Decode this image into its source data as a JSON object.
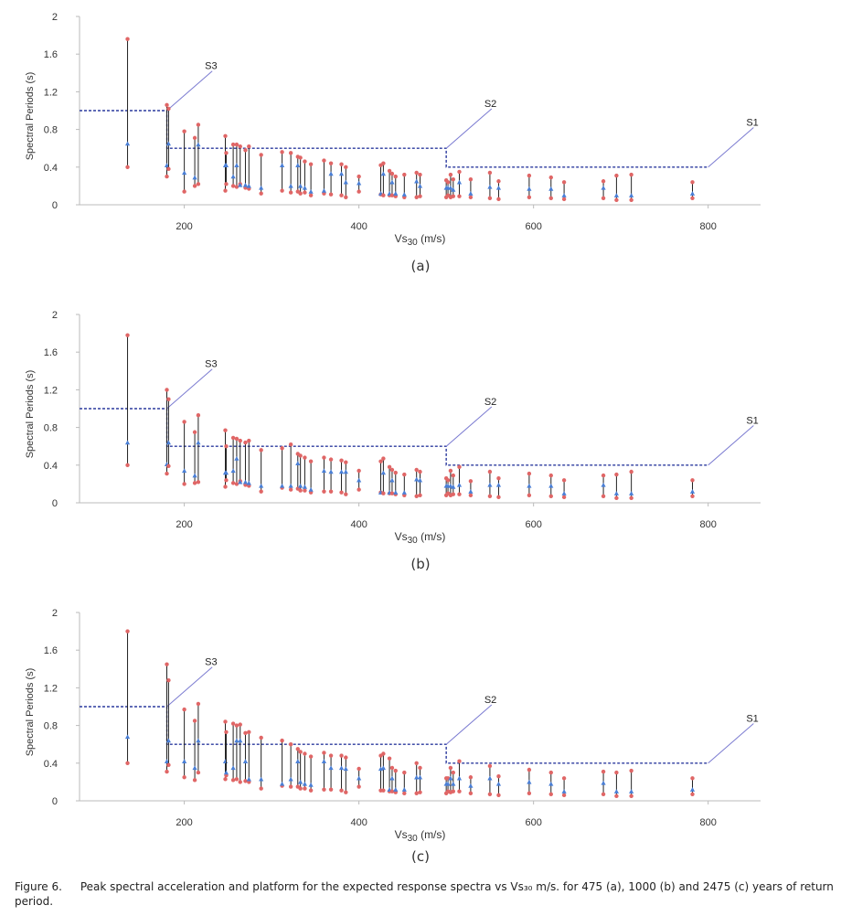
{
  "figure": {
    "caption_label": "Figure 6.",
    "caption_text": "Peak spectral acceleration and platform for the expected response spectra vs Vs₃₀ m/s. for 475 (a), 1000 (b) and 2475 (c) years of return period.",
    "colors": {
      "min_marker": "#e06666",
      "max_marker": "#e06666",
      "mid_marker": "#4a7fd6",
      "range_line": "#222222",
      "platform_line": "#2b3a9e",
      "site_class_label_line": "#7b7bd1",
      "axis": "#444444"
    }
  },
  "chart_data": [
    {
      "type": "scatter",
      "panel_label": "(a)",
      "xlabel_prefix": "Vs",
      "xlabel_subscript": "30",
      "xlabel_suffix": " (m/s)",
      "ylabel": "Spectral Periods (s)",
      "xlim": [
        80,
        860
      ],
      "ylim": [
        0,
        2
      ],
      "xticks": [
        200,
        400,
        600,
        800
      ],
      "yticks": [
        0,
        0.4,
        0.8,
        1.2,
        1.6,
        2
      ],
      "grid": false,
      "platform_steps": [
        {
          "x_start": 80,
          "x_end": 180,
          "y": 1.0
        },
        {
          "x_start": 180,
          "x_end": 500,
          "y": 0.6
        },
        {
          "x_start": 500,
          "x_end": 800,
          "y": 0.4
        }
      ],
      "site_classes": [
        {
          "name": "S3",
          "x": 180,
          "y": 1.0,
          "label_x": 232,
          "label_y": 1.42
        },
        {
          "name": "S2",
          "x": 500,
          "y": 0.6,
          "label_x": 552,
          "label_y": 1.02
        },
        {
          "name": "S1",
          "x": 800,
          "y": 0.4,
          "label_x": 852,
          "label_y": 0.82
        }
      ],
      "stations": [
        {
          "x": 135,
          "min": 0.4,
          "mid": 0.65,
          "max": 1.76
        },
        {
          "x": 180,
          "min": 0.3,
          "mid": 0.42,
          "max": 1.06
        },
        {
          "x": 182,
          "min": 0.38,
          "mid": 0.65,
          "max": 1.02
        },
        {
          "x": 200,
          "min": 0.14,
          "mid": 0.34,
          "max": 0.78
        },
        {
          "x": 212,
          "min": 0.2,
          "mid": 0.29,
          "max": 0.71
        },
        {
          "x": 216,
          "min": 0.22,
          "mid": 0.64,
          "max": 0.85
        },
        {
          "x": 247,
          "min": 0.15,
          "mid": 0.42,
          "max": 0.73
        },
        {
          "x": 248,
          "min": 0.22,
          "mid": 0.42,
          "max": 0.55
        },
        {
          "x": 256,
          "min": 0.2,
          "mid": 0.3,
          "max": 0.64
        },
        {
          "x": 260,
          "min": 0.19,
          "mid": 0.42,
          "max": 0.64
        },
        {
          "x": 264,
          "min": 0.22,
          "mid": 0.21,
          "max": 0.62
        },
        {
          "x": 270,
          "min": 0.18,
          "mid": 0.21,
          "max": 0.58
        },
        {
          "x": 274,
          "min": 0.17,
          "mid": 0.2,
          "max": 0.62
        },
        {
          "x": 288,
          "min": 0.12,
          "mid": 0.18,
          "max": 0.53
        },
        {
          "x": 312,
          "min": 0.15,
          "mid": 0.42,
          "max": 0.56
        },
        {
          "x": 322,
          "min": 0.13,
          "mid": 0.2,
          "max": 0.55
        },
        {
          "x": 330,
          "min": 0.14,
          "mid": 0.42,
          "max": 0.51
        },
        {
          "x": 333,
          "min": 0.12,
          "mid": 0.2,
          "max": 0.5
        },
        {
          "x": 338,
          "min": 0.13,
          "mid": 0.18,
          "max": 0.46
        },
        {
          "x": 345,
          "min": 0.1,
          "mid": 0.14,
          "max": 0.43
        },
        {
          "x": 360,
          "min": 0.12,
          "mid": 0.15,
          "max": 0.47
        },
        {
          "x": 368,
          "min": 0.11,
          "mid": 0.33,
          "max": 0.44
        },
        {
          "x": 380,
          "min": 0.1,
          "mid": 0.33,
          "max": 0.43
        },
        {
          "x": 385,
          "min": 0.08,
          "mid": 0.24,
          "max": 0.4
        },
        {
          "x": 400,
          "min": 0.14,
          "mid": 0.23,
          "max": 0.3
        },
        {
          "x": 425,
          "min": 0.11,
          "mid": 0.12,
          "max": 0.42
        },
        {
          "x": 428,
          "min": 0.1,
          "mid": 0.33,
          "max": 0.44
        },
        {
          "x": 435,
          "min": 0.1,
          "mid": 0.12,
          "max": 0.36
        },
        {
          "x": 438,
          "min": 0.1,
          "mid": 0.24,
          "max": 0.33
        },
        {
          "x": 442,
          "min": 0.09,
          "mid": 0.12,
          "max": 0.3
        },
        {
          "x": 452,
          "min": 0.08,
          "mid": 0.11,
          "max": 0.32
        },
        {
          "x": 466,
          "min": 0.08,
          "mid": 0.25,
          "max": 0.34
        },
        {
          "x": 470,
          "min": 0.09,
          "mid": 0.2,
          "max": 0.32
        },
        {
          "x": 500,
          "min": 0.08,
          "mid": 0.18,
          "max": 0.26
        },
        {
          "x": 502,
          "min": 0.1,
          "mid": 0.18,
          "max": 0.24
        },
        {
          "x": 505,
          "min": 0.08,
          "mid": 0.18,
          "max": 0.32
        },
        {
          "x": 508,
          "min": 0.09,
          "mid": 0.16,
          "max": 0.27
        },
        {
          "x": 515,
          "min": 0.09,
          "mid": 0.24,
          "max": 0.35
        },
        {
          "x": 528,
          "min": 0.08,
          "mid": 0.12,
          "max": 0.27
        },
        {
          "x": 550,
          "min": 0.07,
          "mid": 0.19,
          "max": 0.34
        },
        {
          "x": 560,
          "min": 0.06,
          "mid": 0.18,
          "max": 0.25
        },
        {
          "x": 595,
          "min": 0.08,
          "mid": 0.17,
          "max": 0.31
        },
        {
          "x": 620,
          "min": 0.07,
          "mid": 0.17,
          "max": 0.29
        },
        {
          "x": 635,
          "min": 0.06,
          "mid": 0.1,
          "max": 0.24
        },
        {
          "x": 680,
          "min": 0.07,
          "mid": 0.18,
          "max": 0.25
        },
        {
          "x": 695,
          "min": 0.05,
          "mid": 0.1,
          "max": 0.31
        },
        {
          "x": 712,
          "min": 0.05,
          "mid": 0.1,
          "max": 0.32
        },
        {
          "x": 782,
          "min": 0.07,
          "mid": 0.12,
          "max": 0.24
        }
      ]
    },
    {
      "type": "scatter",
      "panel_label": "(b)",
      "xlabel_prefix": "Vs",
      "xlabel_subscript": "30",
      "xlabel_suffix": " (m/s)",
      "ylabel": "Spectral Periods (s)",
      "xlim": [
        80,
        860
      ],
      "ylim": [
        0,
        2
      ],
      "xticks": [
        200,
        400,
        600,
        800
      ],
      "yticks": [
        0,
        0.4,
        0.8,
        1.2,
        1.6,
        2
      ],
      "grid": false,
      "platform_steps": [
        {
          "x_start": 80,
          "x_end": 180,
          "y": 1.0
        },
        {
          "x_start": 180,
          "x_end": 500,
          "y": 0.6
        },
        {
          "x_start": 500,
          "x_end": 800,
          "y": 0.4
        }
      ],
      "site_classes": [
        {
          "name": "S3",
          "x": 180,
          "y": 1.0,
          "label_x": 232,
          "label_y": 1.42
        },
        {
          "name": "S2",
          "x": 500,
          "y": 0.6,
          "label_x": 552,
          "label_y": 1.02
        },
        {
          "name": "S1",
          "x": 800,
          "y": 0.4,
          "label_x": 852,
          "label_y": 0.82
        }
      ],
      "stations": [
        {
          "x": 135,
          "min": 0.4,
          "mid": 0.64,
          "max": 1.78
        },
        {
          "x": 180,
          "min": 0.31,
          "mid": 0.41,
          "max": 1.2
        },
        {
          "x": 182,
          "min": 0.39,
          "mid": 0.64,
          "max": 1.1
        },
        {
          "x": 200,
          "min": 0.2,
          "mid": 0.34,
          "max": 0.86
        },
        {
          "x": 212,
          "min": 0.21,
          "mid": 0.29,
          "max": 0.75
        },
        {
          "x": 216,
          "min": 0.22,
          "mid": 0.64,
          "max": 0.93
        },
        {
          "x": 247,
          "min": 0.17,
          "mid": 0.32,
          "max": 0.77
        },
        {
          "x": 248,
          "min": 0.24,
          "mid": 0.32,
          "max": 0.6
        },
        {
          "x": 256,
          "min": 0.21,
          "mid": 0.34,
          "max": 0.69
        },
        {
          "x": 260,
          "min": 0.2,
          "mid": 0.47,
          "max": 0.68
        },
        {
          "x": 264,
          "min": 0.23,
          "mid": 0.22,
          "max": 0.66
        },
        {
          "x": 270,
          "min": 0.19,
          "mid": 0.22,
          "max": 0.64
        },
        {
          "x": 274,
          "min": 0.18,
          "mid": 0.21,
          "max": 0.66
        },
        {
          "x": 288,
          "min": 0.12,
          "mid": 0.18,
          "max": 0.56
        },
        {
          "x": 312,
          "min": 0.16,
          "mid": 0.18,
          "max": 0.58
        },
        {
          "x": 322,
          "min": 0.14,
          "mid": 0.18,
          "max": 0.62
        },
        {
          "x": 330,
          "min": 0.15,
          "mid": 0.42,
          "max": 0.52
        },
        {
          "x": 333,
          "min": 0.13,
          "mid": 0.18,
          "max": 0.5
        },
        {
          "x": 338,
          "min": 0.13,
          "mid": 0.17,
          "max": 0.48
        },
        {
          "x": 345,
          "min": 0.11,
          "mid": 0.14,
          "max": 0.44
        },
        {
          "x": 360,
          "min": 0.12,
          "mid": 0.34,
          "max": 0.48
        },
        {
          "x": 368,
          "min": 0.12,
          "mid": 0.33,
          "max": 0.46
        },
        {
          "x": 380,
          "min": 0.11,
          "mid": 0.33,
          "max": 0.45
        },
        {
          "x": 385,
          "min": 0.09,
          "mid": 0.33,
          "max": 0.43
        },
        {
          "x": 400,
          "min": 0.14,
          "mid": 0.24,
          "max": 0.34
        },
        {
          "x": 425,
          "min": 0.11,
          "mid": 0.11,
          "max": 0.44
        },
        {
          "x": 428,
          "min": 0.1,
          "mid": 0.32,
          "max": 0.47
        },
        {
          "x": 435,
          "min": 0.1,
          "mid": 0.11,
          "max": 0.38
        },
        {
          "x": 438,
          "min": 0.1,
          "mid": 0.24,
          "max": 0.35
        },
        {
          "x": 442,
          "min": 0.09,
          "mid": 0.11,
          "max": 0.32
        },
        {
          "x": 452,
          "min": 0.08,
          "mid": 0.11,
          "max": 0.3
        },
        {
          "x": 466,
          "min": 0.07,
          "mid": 0.25,
          "max": 0.35
        },
        {
          "x": 470,
          "min": 0.08,
          "mid": 0.24,
          "max": 0.33
        },
        {
          "x": 500,
          "min": 0.08,
          "mid": 0.18,
          "max": 0.26
        },
        {
          "x": 502,
          "min": 0.1,
          "mid": 0.18,
          "max": 0.24
        },
        {
          "x": 505,
          "min": 0.08,
          "mid": 0.18,
          "max": 0.34
        },
        {
          "x": 508,
          "min": 0.09,
          "mid": 0.17,
          "max": 0.29
        },
        {
          "x": 515,
          "min": 0.09,
          "mid": 0.19,
          "max": 0.38
        },
        {
          "x": 528,
          "min": 0.08,
          "mid": 0.12,
          "max": 0.23
        },
        {
          "x": 550,
          "min": 0.07,
          "mid": 0.19,
          "max": 0.33
        },
        {
          "x": 560,
          "min": 0.06,
          "mid": 0.19,
          "max": 0.26
        },
        {
          "x": 595,
          "min": 0.08,
          "mid": 0.18,
          "max": 0.31
        },
        {
          "x": 620,
          "min": 0.07,
          "mid": 0.18,
          "max": 0.29
        },
        {
          "x": 635,
          "min": 0.06,
          "mid": 0.1,
          "max": 0.24
        },
        {
          "x": 680,
          "min": 0.07,
          "mid": 0.19,
          "max": 0.29
        },
        {
          "x": 695,
          "min": 0.05,
          "mid": 0.1,
          "max": 0.3
        },
        {
          "x": 712,
          "min": 0.05,
          "mid": 0.1,
          "max": 0.33
        },
        {
          "x": 782,
          "min": 0.07,
          "mid": 0.12,
          "max": 0.24
        }
      ]
    },
    {
      "type": "scatter",
      "panel_label": "(c)",
      "xlabel_prefix": "Vs",
      "xlabel_subscript": "30",
      "xlabel_suffix": " (m/s)",
      "ylabel": "Spectral Periods (s)",
      "xlim": [
        80,
        860
      ],
      "ylim": [
        0,
        2
      ],
      "xticks": [
        200,
        400,
        600,
        800
      ],
      "yticks": [
        0,
        0.4,
        0.8,
        1.2,
        1.6,
        2
      ],
      "grid": false,
      "platform_steps": [
        {
          "x_start": 80,
          "x_end": 180,
          "y": 1.0
        },
        {
          "x_start": 180,
          "x_end": 500,
          "y": 0.6
        },
        {
          "x_start": 500,
          "x_end": 800,
          "y": 0.4
        }
      ],
      "site_classes": [
        {
          "name": "S3",
          "x": 180,
          "y": 1.0,
          "label_x": 232,
          "label_y": 1.42
        },
        {
          "name": "S2",
          "x": 500,
          "y": 0.6,
          "label_x": 552,
          "label_y": 1.02
        },
        {
          "name": "S1",
          "x": 800,
          "y": 0.4,
          "label_x": 852,
          "label_y": 0.82
        }
      ],
      "stations": [
        {
          "x": 135,
          "min": 0.4,
          "mid": 0.68,
          "max": 1.8
        },
        {
          "x": 180,
          "min": 0.31,
          "mid": 0.42,
          "max": 1.45
        },
        {
          "x": 182,
          "min": 0.38,
          "mid": 0.64,
          "max": 1.28
        },
        {
          "x": 200,
          "min": 0.25,
          "mid": 0.42,
          "max": 0.97
        },
        {
          "x": 212,
          "min": 0.22,
          "mid": 0.35,
          "max": 0.85
        },
        {
          "x": 216,
          "min": 0.3,
          "mid": 0.64,
          "max": 1.03
        },
        {
          "x": 247,
          "min": 0.23,
          "mid": 0.42,
          "max": 0.84
        },
        {
          "x": 248,
          "min": 0.27,
          "mid": 0.3,
          "max": 0.73
        },
        {
          "x": 256,
          "min": 0.22,
          "mid": 0.35,
          "max": 0.82
        },
        {
          "x": 260,
          "min": 0.23,
          "mid": 0.64,
          "max": 0.8
        },
        {
          "x": 264,
          "min": 0.2,
          "mid": 0.64,
          "max": 0.81
        },
        {
          "x": 270,
          "min": 0.21,
          "mid": 0.42,
          "max": 0.72
        },
        {
          "x": 274,
          "min": 0.2,
          "mid": 0.23,
          "max": 0.73
        },
        {
          "x": 288,
          "min": 0.13,
          "mid": 0.23,
          "max": 0.67
        },
        {
          "x": 312,
          "min": 0.16,
          "mid": 0.18,
          "max": 0.64
        },
        {
          "x": 322,
          "min": 0.15,
          "mid": 0.23,
          "max": 0.6
        },
        {
          "x": 330,
          "min": 0.15,
          "mid": 0.42,
          "max": 0.55
        },
        {
          "x": 333,
          "min": 0.13,
          "mid": 0.2,
          "max": 0.52
        },
        {
          "x": 338,
          "min": 0.13,
          "mid": 0.18,
          "max": 0.5
        },
        {
          "x": 345,
          "min": 0.11,
          "mid": 0.17,
          "max": 0.47
        },
        {
          "x": 360,
          "min": 0.12,
          "mid": 0.42,
          "max": 0.51
        },
        {
          "x": 368,
          "min": 0.12,
          "mid": 0.35,
          "max": 0.48
        },
        {
          "x": 380,
          "min": 0.11,
          "mid": 0.35,
          "max": 0.48
        },
        {
          "x": 385,
          "min": 0.09,
          "mid": 0.34,
          "max": 0.46
        },
        {
          "x": 400,
          "min": 0.15,
          "mid": 0.24,
          "max": 0.34
        },
        {
          "x": 425,
          "min": 0.11,
          "mid": 0.34,
          "max": 0.48
        },
        {
          "x": 428,
          "min": 0.11,
          "mid": 0.35,
          "max": 0.5
        },
        {
          "x": 435,
          "min": 0.1,
          "mid": 0.12,
          "max": 0.45
        },
        {
          "x": 438,
          "min": 0.1,
          "mid": 0.24,
          "max": 0.35
        },
        {
          "x": 442,
          "min": 0.09,
          "mid": 0.12,
          "max": 0.32
        },
        {
          "x": 452,
          "min": 0.08,
          "mid": 0.12,
          "max": 0.3
        },
        {
          "x": 466,
          "min": 0.08,
          "mid": 0.25,
          "max": 0.4
        },
        {
          "x": 470,
          "min": 0.09,
          "mid": 0.25,
          "max": 0.35
        },
        {
          "x": 500,
          "min": 0.08,
          "mid": 0.18,
          "max": 0.24
        },
        {
          "x": 502,
          "min": 0.1,
          "mid": 0.18,
          "max": 0.24
        },
        {
          "x": 505,
          "min": 0.09,
          "mid": 0.24,
          "max": 0.35
        },
        {
          "x": 508,
          "min": 0.1,
          "mid": 0.18,
          "max": 0.3
        },
        {
          "x": 515,
          "min": 0.1,
          "mid": 0.24,
          "max": 0.42
        },
        {
          "x": 528,
          "min": 0.08,
          "mid": 0.16,
          "max": 0.25
        },
        {
          "x": 550,
          "min": 0.07,
          "mid": 0.24,
          "max": 0.37
        },
        {
          "x": 560,
          "min": 0.06,
          "mid": 0.18,
          "max": 0.26
        },
        {
          "x": 595,
          "min": 0.08,
          "mid": 0.2,
          "max": 0.33
        },
        {
          "x": 620,
          "min": 0.07,
          "mid": 0.18,
          "max": 0.3
        },
        {
          "x": 635,
          "min": 0.06,
          "mid": 0.1,
          "max": 0.24
        },
        {
          "x": 680,
          "min": 0.07,
          "mid": 0.19,
          "max": 0.31
        },
        {
          "x": 695,
          "min": 0.05,
          "mid": 0.1,
          "max": 0.3
        },
        {
          "x": 712,
          "min": 0.05,
          "mid": 0.1,
          "max": 0.32
        },
        {
          "x": 782,
          "min": 0.07,
          "mid": 0.12,
          "max": 0.24
        }
      ]
    }
  ]
}
